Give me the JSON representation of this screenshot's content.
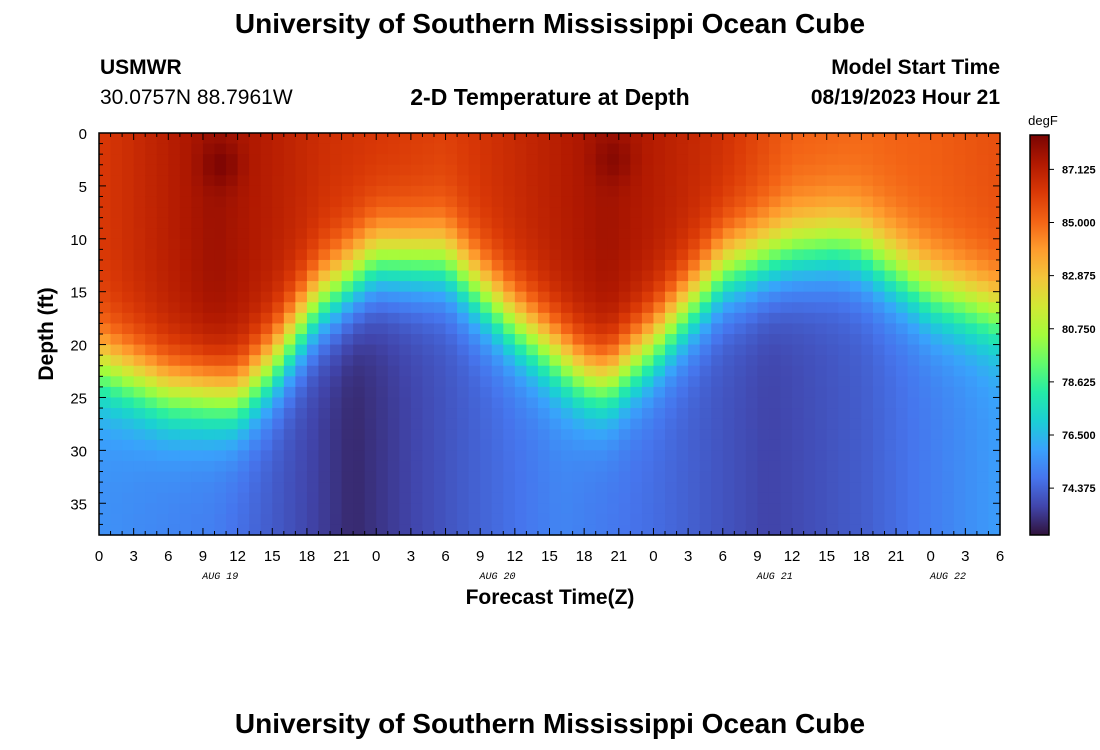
{
  "page": {
    "title": "University of Southern Mississippi Ocean Cube",
    "station": "USMWR",
    "coords": "30.0757N  88.7961W",
    "plot_title": "2-D Temperature at Depth",
    "model_label": "Model Start Time",
    "model_time": "08/19/2023 Hour 21",
    "footer_title": "University of Southern Mississippi Ocean Cube"
  },
  "chart_data": {
    "type": "heatmap",
    "title": "2-D Temperature at Depth",
    "xlabel": "Forecast Time(Z)",
    "ylabel": "Depth (ft)",
    "xlim": [
      0,
      78
    ],
    "ylim": [
      38,
      0
    ],
    "x_tick_labels": [
      "0",
      "3",
      "6",
      "9",
      "12",
      "15",
      "18",
      "21",
      "0",
      "3",
      "6",
      "9",
      "12",
      "15",
      "18",
      "21",
      "0",
      "3",
      "6",
      "9",
      "12",
      "15",
      "18",
      "21",
      "0",
      "3",
      "6"
    ],
    "date_labels": [
      {
        "text": "AUG 19",
        "at": 10.5
      },
      {
        "text": "AUG 20",
        "at": 34.5
      },
      {
        "text": "AUG 21",
        "at": 58.5
      },
      {
        "text": "AUG 22",
        "at": 73.5
      }
    ],
    "y_ticks": [
      0,
      5,
      10,
      15,
      20,
      25,
      30,
      35
    ],
    "colorbar": {
      "unit": "degF",
      "min": 72.5,
      "max": 88.5,
      "labels": [
        "87.125",
        "85.000",
        "82.875",
        "80.750",
        "78.625",
        "76.500",
        "74.375"
      ]
    },
    "colormap": [
      "#30123b",
      "#4145ab",
      "#4675ed",
      "#39a2fc",
      "#1bcfd4",
      "#24eca6",
      "#61fc6c",
      "#a4fc3b",
      "#d1e834",
      "#f3c63a",
      "#fe9b2d",
      "#f36315",
      "#d93806",
      "#b11901",
      "#7a0403"
    ],
    "thermocline_depth_ft": {
      "hours": [
        0,
        6,
        12,
        15,
        19,
        24,
        30,
        36,
        42,
        44,
        48,
        54,
        60,
        64,
        66,
        72,
        78
      ],
      "depth": [
        19,
        21.5,
        22,
        19,
        13,
        9,
        9,
        15,
        20,
        20.5,
        17,
        10,
        8,
        7.5,
        8,
        12,
        14
      ]
    },
    "surface_temp_degF": {
      "hours": [
        0,
        10,
        20,
        30,
        44,
        54,
        60,
        66,
        72,
        78
      ],
      "temp": [
        86.2,
        87.8,
        86.5,
        86.0,
        87.7,
        86.5,
        85.2,
        85.0,
        85.2,
        85.6
      ]
    },
    "bottom_temp_degF": {
      "hours": [
        0,
        10,
        22,
        30,
        40,
        48,
        58,
        66,
        78
      ],
      "temp": [
        75.5,
        75.0,
        73.0,
        74.0,
        75.2,
        74.6,
        73.6,
        74.2,
        75.8
      ]
    },
    "hotspots": [
      {
        "hour": 10.5,
        "depth": 3,
        "temp": 88.4
      },
      {
        "hour": 44.5,
        "depth": 2.5,
        "temp": 88.2
      }
    ]
  }
}
